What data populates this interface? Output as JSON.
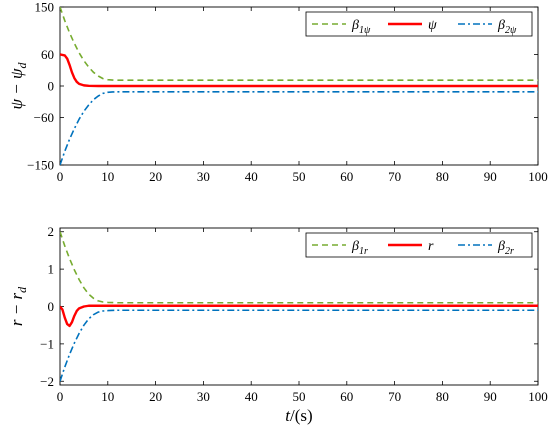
{
  "colors": {
    "beta1": "#77AC30",
    "main": "#FF0000",
    "beta2": "#0072BD",
    "axes": "#000000"
  },
  "chart_data": [
    {
      "type": "line",
      "ylabel": "ψ − ψ_d",
      "xlim": [
        0,
        100
      ],
      "ylim": [
        -150,
        150
      ],
      "x_ticks": [
        0,
        10,
        20,
        30,
        40,
        50,
        60,
        70,
        80,
        90,
        100
      ],
      "y_ticks": [
        -150,
        -60,
        0,
        60,
        150
      ],
      "legend_position": "top-right",
      "series": [
        {
          "name": "β1ψ",
          "legend_main": "β",
          "legend_sub": "1ψ",
          "style": "dashed",
          "color_key": "beta1",
          "points": [
            [
              0,
              150
            ],
            [
              1,
              124
            ],
            [
              2,
              101
            ],
            [
              3,
              81
            ],
            [
              4,
              63
            ],
            [
              5,
              48
            ],
            [
              6,
              36
            ],
            [
              7,
              26
            ],
            [
              8,
              19
            ],
            [
              9,
              14
            ],
            [
              10,
              12
            ],
            [
              11,
              11.3
            ],
            [
              12,
              11
            ],
            [
              20,
              11
            ],
            [
              50,
              11
            ],
            [
              100,
              11
            ]
          ]
        },
        {
          "name": "ψ",
          "legend_main": "ψ",
          "legend_sub": "",
          "style": "solid",
          "color_key": "main",
          "points": [
            [
              0,
              60
            ],
            [
              1,
              58
            ],
            [
              1.5,
              52
            ],
            [
              2,
              40
            ],
            [
              2.5,
              26
            ],
            [
              3,
              15
            ],
            [
              3.5,
              8
            ],
            [
              4,
              4
            ],
            [
              5,
              1.2
            ],
            [
              6,
              0.3
            ],
            [
              8,
              0
            ],
            [
              100,
              0
            ]
          ]
        },
        {
          "name": "β2ψ",
          "legend_main": "β",
          "legend_sub": "2ψ",
          "style": "dashdot",
          "color_key": "beta2",
          "points": [
            [
              0,
              -150
            ],
            [
              1,
              -124
            ],
            [
              2,
              -101
            ],
            [
              3,
              -81
            ],
            [
              4,
              -63
            ],
            [
              5,
              -48
            ],
            [
              6,
              -36
            ],
            [
              7,
              -26
            ],
            [
              8,
              -19
            ],
            [
              9,
              -14
            ],
            [
              10,
              -12
            ],
            [
              11,
              -11.3
            ],
            [
              12,
              -11
            ],
            [
              20,
              -11
            ],
            [
              50,
              -11
            ],
            [
              100,
              -11
            ]
          ]
        }
      ]
    },
    {
      "type": "line",
      "ylabel": "r − r_d",
      "xlabel": "t/(s)",
      "xlim": [
        0,
        100
      ],
      "ylim": [
        -2.1,
        2.1
      ],
      "x_ticks": [
        0,
        10,
        20,
        30,
        40,
        50,
        60,
        70,
        80,
        90,
        100
      ],
      "y_ticks": [
        -2,
        -1,
        0,
        1,
        2
      ],
      "legend_position": "top-right",
      "series": [
        {
          "name": "β1r",
          "legend_main": "β",
          "legend_sub": "1r",
          "style": "dashed",
          "color_key": "beta1",
          "points": [
            [
              0,
              2.0
            ],
            [
              1,
              1.62
            ],
            [
              2,
              1.28
            ],
            [
              3,
              0.98
            ],
            [
              4,
              0.72
            ],
            [
              5,
              0.5
            ],
            [
              6,
              0.33
            ],
            [
              7,
              0.22
            ],
            [
              8,
              0.15
            ],
            [
              9,
              0.12
            ],
            [
              10,
              0.11
            ],
            [
              12,
              0.1
            ],
            [
              100,
              0.1
            ]
          ]
        },
        {
          "name": "r",
          "legend_main": "r",
          "legend_sub": "",
          "style": "solid",
          "color_key": "main",
          "points": [
            [
              0,
              0
            ],
            [
              0.5,
              -0.08
            ],
            [
              1,
              -0.3
            ],
            [
              1.5,
              -0.47
            ],
            [
              2,
              -0.52
            ],
            [
              2.5,
              -0.42
            ],
            [
              3,
              -0.25
            ],
            [
              3.5,
              -0.12
            ],
            [
              4,
              -0.05
            ],
            [
              5,
              0
            ],
            [
              6,
              0.02
            ],
            [
              10,
              0.02
            ],
            [
              100,
              0.02
            ]
          ]
        },
        {
          "name": "β2r",
          "legend_main": "β",
          "legend_sub": "2r",
          "style": "dashdot",
          "color_key": "beta2",
          "points": [
            [
              0,
              -2.0
            ],
            [
              1,
              -1.62
            ],
            [
              2,
              -1.28
            ],
            [
              3,
              -0.98
            ],
            [
              4,
              -0.72
            ],
            [
              5,
              -0.5
            ],
            [
              6,
              -0.33
            ],
            [
              7,
              -0.22
            ],
            [
              8,
              -0.15
            ],
            [
              9,
              -0.12
            ],
            [
              10,
              -0.11
            ],
            [
              12,
              -0.1
            ],
            [
              100,
              -0.1
            ]
          ]
        }
      ]
    }
  ]
}
